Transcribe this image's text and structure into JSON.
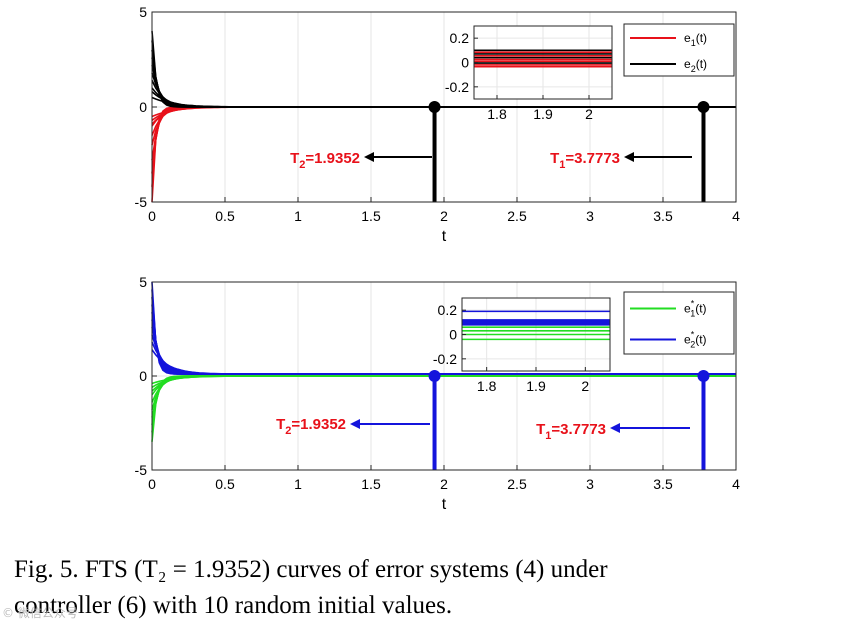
{
  "caption": {
    "line1": "Fig. 5. FTS (T₂ = 1.9352) curves of error systems (4) under",
    "line2": "controller (6) with 10 random initial values."
  },
  "watermark": "© 微信公众号",
  "chart_data": [
    {
      "type": "line",
      "xlabel": "t",
      "ylabel": "",
      "xlim": [
        0,
        4
      ],
      "ylim": [
        -5,
        5
      ],
      "xticks": [
        "0",
        "0.5",
        "1",
        "1.5",
        "2",
        "2.5",
        "3",
        "3.5",
        "4"
      ],
      "yticks": [
        "5",
        "0",
        "-5"
      ],
      "grid": true,
      "legend_position": "top-right",
      "series": [
        {
          "name": "e1(t)",
          "color": "#e8111a",
          "initial_values": [
            -5.0,
            -4.2,
            -3.5,
            -2.8,
            -2.0,
            -1.5,
            -1.0,
            -0.9,
            -0.7,
            -0.5
          ],
          "steady_value": 0
        },
        {
          "name": "e2(t)",
          "color": "#000000",
          "initial_values": [
            4.0,
            3.5,
            3.0,
            2.6,
            2.2,
            1.8,
            1.4,
            1.0,
            0.8,
            0.5
          ],
          "steady_value": 0
        }
      ],
      "legend": [
        {
          "base": "e",
          "sub": "1",
          "suffix": "(t)",
          "color": "#e8111a"
        },
        {
          "base": "e",
          "sub": "2",
          "suffix": "(t)",
          "color": "#000000"
        }
      ],
      "markers": [
        {
          "x": 1.9352,
          "label_base": "T",
          "label_sub": "2",
          "label_value": "=1.9352",
          "color": "#000000"
        },
        {
          "x": 3.7773,
          "label_base": "T",
          "label_sub": "1",
          "label_value": "=3.7773",
          "color": "#000000"
        }
      ],
      "annotation_color": "#e8111a",
      "inset": {
        "xlim": [
          1.75,
          2.05
        ],
        "ylim": [
          -0.3,
          0.3
        ],
        "xticks": [
          "1.8",
          "1.9",
          "2"
        ],
        "yticks": [
          "0.2",
          "0",
          "-0.2"
        ],
        "lines": [
          {
            "y": 0.1,
            "color": "#000000"
          },
          {
            "y": 0.085,
            "color": "#e8111a"
          },
          {
            "y": 0.07,
            "color": "#000000"
          },
          {
            "y": 0.055,
            "color": "#e8111a"
          },
          {
            "y": 0.04,
            "color": "#000000"
          },
          {
            "y": 0.025,
            "color": "#e8111a"
          },
          {
            "y": 0.01,
            "color": "#e8111a"
          },
          {
            "y": -0.005,
            "color": "#000000"
          },
          {
            "y": -0.02,
            "color": "#e8111a"
          },
          {
            "y": -0.035,
            "color": "#e8111a"
          }
        ]
      }
    },
    {
      "type": "line",
      "xlabel": "t",
      "ylabel": "",
      "xlim": [
        0,
        4
      ],
      "ylim": [
        -5,
        5
      ],
      "xticks": [
        "0",
        "0.5",
        "1",
        "1.5",
        "2",
        "2.5",
        "3",
        "3.5",
        "4"
      ],
      "yticks": [
        "5",
        "0",
        "-5"
      ],
      "grid": true,
      "legend_position": "top-right",
      "series": [
        {
          "name": "e1*(t)",
          "color": "#22dd22",
          "initial_values": [
            -3.5,
            -3.0,
            -2.6,
            -2.2,
            -1.8,
            -1.4,
            -1.0,
            -0.8,
            -0.6,
            -0.4
          ],
          "steady_value": 0
        },
        {
          "name": "e2*(t)",
          "color": "#1414dc",
          "initial_values": [
            5.0,
            4.6,
            4.2,
            3.8,
            3.4,
            3.0,
            2.6,
            2.2,
            1.8,
            1.4
          ],
          "steady_value": 0.1
        }
      ],
      "legend": [
        {
          "base": "e",
          "sup": "*",
          "sub": "1",
          "suffix": "(t)",
          "color": "#22dd22"
        },
        {
          "base": "e",
          "sup": "*",
          "sub": "2",
          "suffix": "(t)",
          "color": "#1414dc"
        }
      ],
      "markers": [
        {
          "x": 1.9352,
          "label_base": "T",
          "label_sub": "2",
          "label_value": "=1.9352",
          "color": "#1414dc"
        },
        {
          "x": 3.7773,
          "label_base": "T",
          "label_sub": "1",
          "label_value": "=3.7773",
          "color": "#1414dc"
        }
      ],
      "annotation_color": "#e8111a",
      "inset": {
        "xlim": [
          1.75,
          2.05
        ],
        "ylim": [
          -0.3,
          0.3
        ],
        "xticks": [
          "1.8",
          "1.9",
          "2"
        ],
        "yticks": [
          "0.2",
          "0",
          "-0.2"
        ],
        "lines": [
          {
            "y": 0.19,
            "color": "#1414dc"
          },
          {
            "y": 0.12,
            "color": "#1414dc"
          },
          {
            "y": 0.11,
            "color": "#1414dc"
          },
          {
            "y": 0.1,
            "color": "#1414dc"
          },
          {
            "y": 0.09,
            "color": "#1414dc"
          },
          {
            "y": 0.08,
            "color": "#1414dc"
          },
          {
            "y": 0.06,
            "color": "#22dd22"
          },
          {
            "y": 0.03,
            "color": "#22dd22"
          },
          {
            "y": 0.0,
            "color": "#22dd22"
          },
          {
            "y": -0.04,
            "color": "#22dd22"
          }
        ]
      }
    }
  ]
}
